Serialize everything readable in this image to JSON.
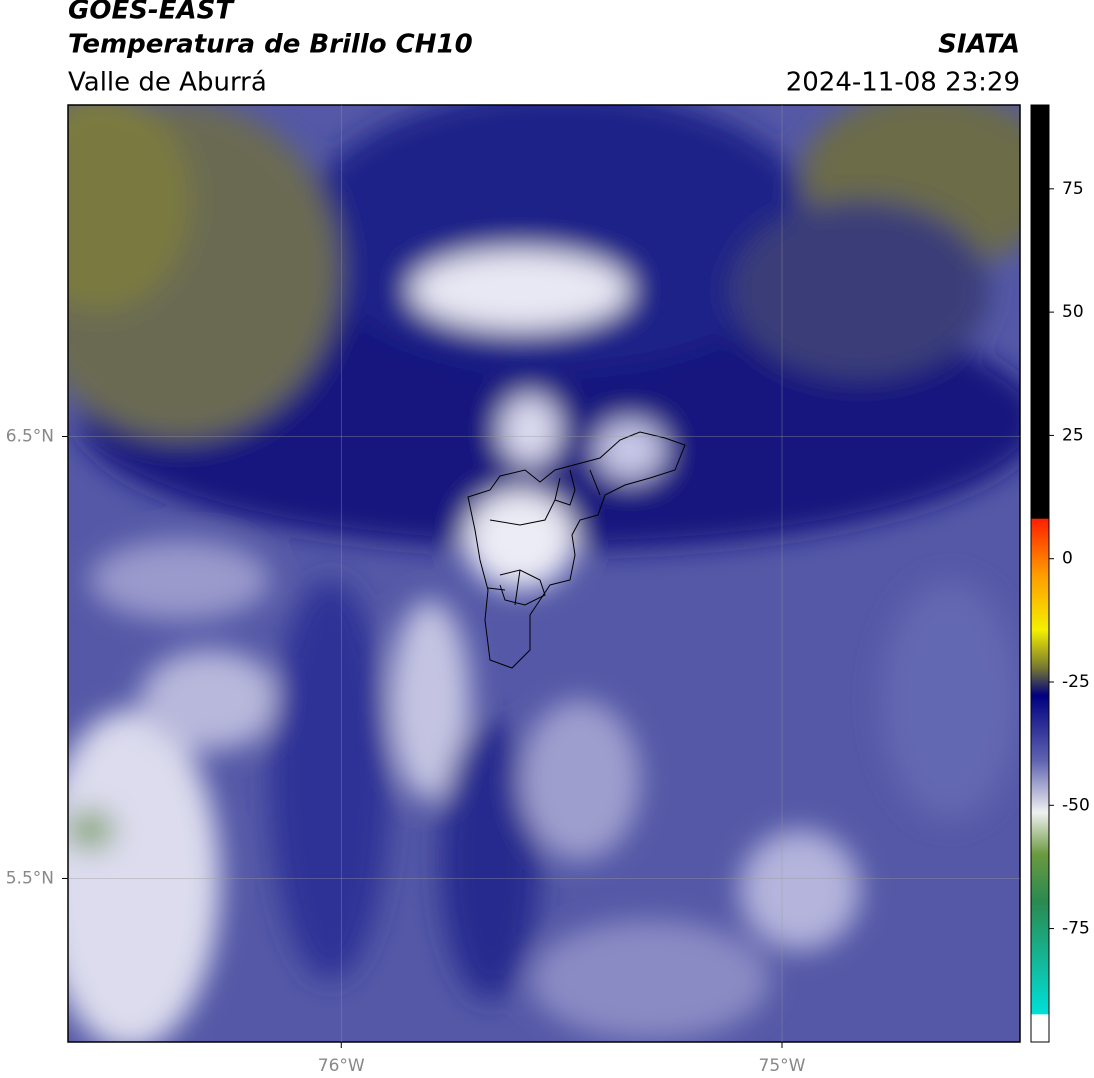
{
  "header": {
    "title": "GOES-EAST",
    "subtitle": "Temperatura de Brillo CH10",
    "region": "Valle de Aburrá",
    "org": "SIATA",
    "datetime": "2024-11-08 23:29"
  },
  "map": {
    "xlim": [
      -76.62,
      -74.46
    ],
    "ylim": [
      5.13,
      7.25
    ],
    "xticks": [
      {
        "value": -76,
        "label": "76°W"
      },
      {
        "value": -75,
        "label": "75°W"
      }
    ],
    "yticks": [
      {
        "value": 6.5,
        "label": "6.5°N"
      },
      {
        "value": 5.5,
        "label": "5.5°N"
      }
    ]
  },
  "colorbar": {
    "lim": [
      -98,
      92
    ],
    "ticks": [
      75,
      50,
      25,
      0,
      -25,
      -50,
      -75
    ]
  }
}
